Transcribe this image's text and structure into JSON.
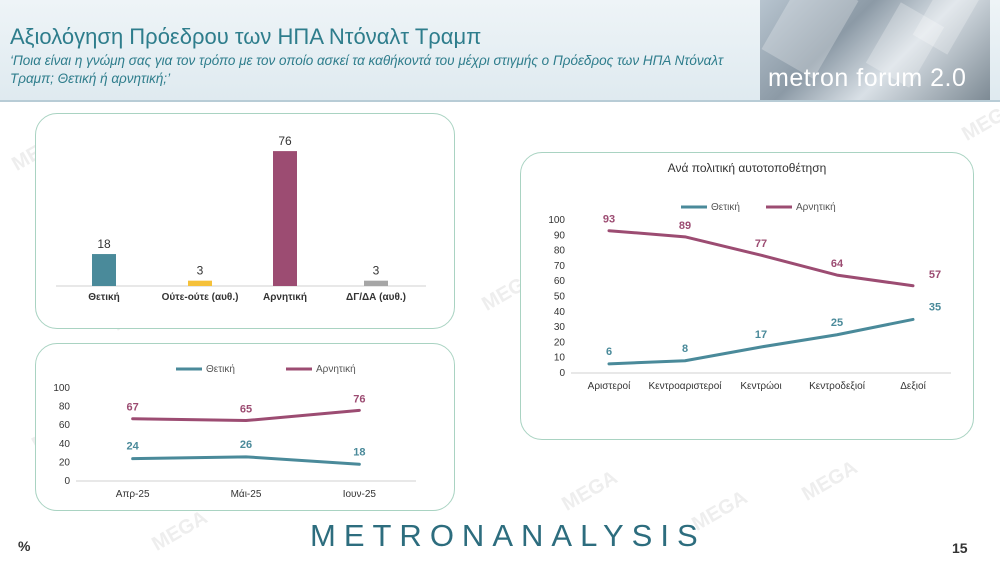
{
  "header": {
    "title": "Αξιολόγηση Πρόεδρου των ΗΠΑ Ντόναλτ Τραμπ",
    "subtitle": "‘Ποια είναι η γνώμη σας για τον τρόπο με τον οποίο ασκεί τα καθήκοντά του μέχρι στιγμής ο Πρόεδρος των ΗΠΑ Ντόναλτ Τραμπ; Θετική ή αρνητική;’",
    "brand": "metron forum 2.0"
  },
  "footer": {
    "logo": "METRONANALYSIS",
    "percent_sign": "%",
    "page_number": "15"
  },
  "watermark": "MEGA",
  "colors": {
    "positive": "#4a8a9a",
    "negative": "#9c4c72",
    "neutral": "#f5c13a",
    "dk": "#a6a6a6",
    "teal_text": "#2e7d8c"
  },
  "chart_data": [
    {
      "type": "bar",
      "categories": [
        "Θετική",
        "Ούτε-ούτε (αυθ.)",
        "Αρνητική",
        "ΔΓ/ΔΑ (αυθ.)"
      ],
      "values": [
        18,
        3,
        76,
        3
      ],
      "ylim": [
        0,
        80
      ]
    },
    {
      "type": "line",
      "categories": [
        "Απρ-25",
        "Μάι-25",
        "Ιουν-25"
      ],
      "series": [
        {
          "name": "Θετική",
          "values": [
            24,
            26,
            18
          ]
        },
        {
          "name": "Αρνητική",
          "values": [
            67,
            65,
            76
          ]
        }
      ],
      "ylim": [
        0,
        100
      ],
      "yticks": [
        0,
        20,
        40,
        60,
        80,
        100
      ],
      "legend": "top"
    },
    {
      "type": "line",
      "title": "Ανά πολιτική αυτοτοποθέτηση",
      "categories": [
        "Αριστεροί",
        "Κεντροαριστεροί",
        "Κεντρώοι",
        "Κεντροδεξιοί",
        "Δεξιοί"
      ],
      "series": [
        {
          "name": "Θετική",
          "values": [
            6,
            8,
            17,
            25,
            35
          ]
        },
        {
          "name": "Αρνητική",
          "values": [
            93,
            89,
            77,
            64,
            57
          ]
        }
      ],
      "ylim": [
        0,
        100
      ],
      "yticks": [
        0,
        10,
        20,
        30,
        40,
        50,
        60,
        70,
        80,
        90,
        100
      ],
      "legend": "top"
    }
  ]
}
